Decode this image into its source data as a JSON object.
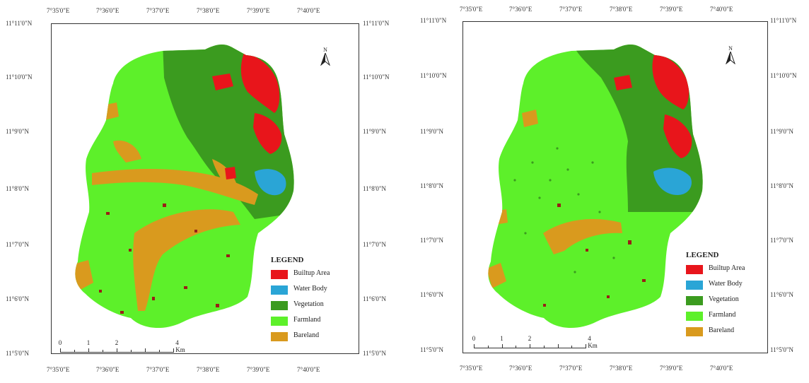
{
  "maps": [
    {
      "lon_labels": [
        "7°35'0\"E",
        "7°36'0\"E",
        "7°37'0\"E",
        "7°38'0\"E",
        "7°39'0\"E",
        "7°40'0\"E"
      ],
      "lat_labels": [
        "11°11'0\"N",
        "11°10'0\"N",
        "11°9'0\"N",
        "11°8'0\"N",
        "11°7'0\"N",
        "11°6'0\"N",
        "11°5'0\"N"
      ],
      "north_letter": "N",
      "legend": {
        "title": "LEGEND",
        "items": [
          {
            "label": "Builtup Area",
            "color": "#e8151b"
          },
          {
            "label": "Water Body",
            "color": "#2aa5d6"
          },
          {
            "label": "Vegetation",
            "color": "#3b9b1f"
          },
          {
            "label": "Farmland",
            "color": "#5df02a"
          },
          {
            "label": "Bareland",
            "color": "#d99a1e"
          }
        ]
      },
      "scale": {
        "labels": [
          "0",
          "1",
          "2",
          "4 Km"
        ],
        "units": [
          0,
          1,
          2,
          4
        ]
      }
    },
    {
      "lon_labels": [
        "7°35'0\"E",
        "7°36'0\"E",
        "7°37'0\"E",
        "7°38'0\"E",
        "7°39'0\"E",
        "7°40'0\"E"
      ],
      "lat_labels": [
        "11°11'0\"N",
        "11°10'0\"N",
        "11°9'0\"N",
        "11°8'0\"N",
        "11°7'0\"N",
        "11°6'0\"N",
        "11°5'0\"N"
      ],
      "north_letter": "N",
      "legend": {
        "title": "LEGEND",
        "items": [
          {
            "label": "Builtup Area",
            "color": "#e8151b"
          },
          {
            "label": "Water Body",
            "color": "#2aa5d6"
          },
          {
            "label": "Vegetation",
            "color": "#3b9b1f"
          },
          {
            "label": "Farmland",
            "color": "#5df02a"
          },
          {
            "label": "Bareland",
            "color": "#d99a1e"
          }
        ]
      },
      "scale": {
        "labels": [
          "0",
          "1",
          "2",
          "4 Km"
        ],
        "units": [
          0,
          1,
          2,
          4
        ]
      }
    }
  ]
}
